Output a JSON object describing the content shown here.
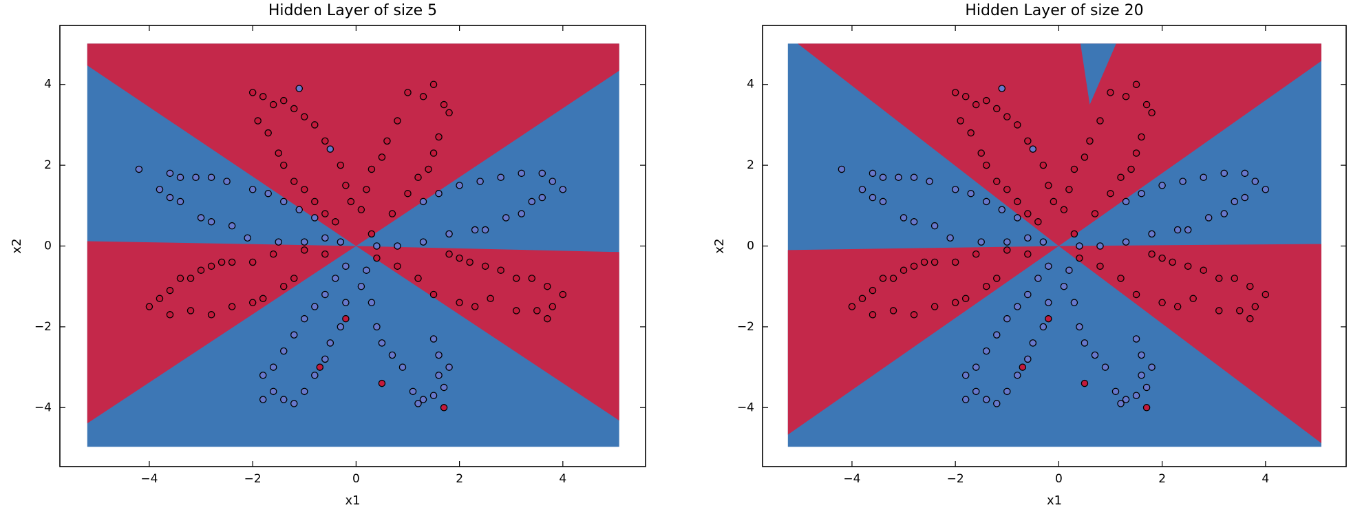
{
  "chart_data": [
    {
      "type": "scatter",
      "title": "Hidden Layer of size 5",
      "xlabel": "x1",
      "ylabel": "x2",
      "xlim": [
        -5.73,
        5.6
      ],
      "ylim": [
        -5.46,
        5.46
      ],
      "xticks": [
        {
          "value": -4,
          "label": "−4"
        },
        {
          "value": -2,
          "label": "−2"
        },
        0,
        2,
        4
      ],
      "yticks": [
        {
          "value": -4,
          "label": "−4"
        },
        {
          "value": -2,
          "label": "−2"
        },
        0,
        2,
        4
      ],
      "regions": [
        {
          "color": "#3d77b5",
          "x": [
            -5.2,
            5.09,
            5.09,
            -5.2
          ],
          "y": [
            5.01,
            5.01,
            -4.97,
            -4.97
          ]
        },
        {
          "color": "#c4284a",
          "x": [
            -5.2,
            -5.2,
            5.09,
            5.09,
            0
          ],
          "y": [
            4.47,
            5.01,
            5.01,
            4.34,
            0
          ]
        },
        {
          "color": "#c4284a",
          "x": [
            -5.2,
            0,
            -5.2
          ],
          "y": [
            0.12,
            0,
            -4.39
          ]
        },
        {
          "color": "#c4284a",
          "x": [
            5.09,
            0,
            5.09
          ],
          "y": [
            -0.15,
            0,
            -4.32
          ]
        }
      ],
      "series": [
        {
          "color": "#c41a3c",
          "x": [
            -2,
            -1.8,
            -1.6,
            -1.4,
            -1.2,
            -1,
            -0.8,
            -0.6,
            -1.9,
            -1.7,
            -1.5,
            -1.4,
            -1.2,
            -1,
            -0.8,
            -0.6,
            -0.4,
            -0.3,
            -0.2,
            -0.1,
            1,
            1.3,
            1.5,
            1.7,
            1.8,
            1.6,
            1.5,
            1.4,
            0.8,
            0.6,
            0.5,
            0.3,
            0.2,
            0.1,
            0.3,
            1.2,
            1,
            0.7,
            -4,
            -3.8,
            -3.6,
            -3.4,
            -3.2,
            -3,
            -2.8,
            -2.6,
            -2.4,
            -3.6,
            -3.2,
            -2.8,
            -2.4,
            -2,
            -1.8,
            -1.4,
            -1.2,
            -1.6,
            -1,
            -0.6,
            -2,
            1.8,
            2,
            2.2,
            2.5,
            2.8,
            3.1,
            3.4,
            3.7,
            4,
            3.8,
            3.5,
            3.1,
            2.6,
            2.3,
            2,
            1.5,
            1.2,
            0.8,
            0.4,
            3.7,
            -0.2,
            -0.7,
            1.7,
            0.5
          ],
          "y": [
            3.8,
            3.7,
            3.5,
            3.6,
            3.4,
            3.2,
            3,
            2.6,
            3.1,
            2.8,
            2.3,
            2,
            1.6,
            1.4,
            1.1,
            0.8,
            0.6,
            2,
            1.5,
            1.1,
            3.8,
            3.7,
            4,
            3.5,
            3.3,
            2.7,
            2.3,
            1.9,
            3.1,
            2.6,
            2.2,
            1.9,
            1.4,
            0.9,
            0.3,
            1.7,
            1.3,
            0.8,
            -1.5,
            -1.3,
            -1.1,
            -0.8,
            -0.8,
            -0.6,
            -0.5,
            -0.4,
            -0.4,
            -1.7,
            -1.6,
            -1.7,
            -1.5,
            -1.4,
            -1.3,
            -1,
            -0.8,
            -0.2,
            -0.1,
            -0.2,
            -0.4,
            -0.2,
            -0.3,
            -0.4,
            -0.5,
            -0.6,
            -0.8,
            -0.8,
            -1,
            -1.2,
            -1.5,
            -1.6,
            -1.6,
            -1.3,
            -1.5,
            -1.4,
            -1.2,
            -0.8,
            -0.5,
            -0.3,
            -1.8,
            -1.8,
            -3,
            -4,
            -3.4
          ]
        },
        {
          "color": "#6878cc",
          "x": [
            -4.2,
            -3.8,
            -3.6,
            -3.4,
            -3.6,
            -3.4,
            -3.1,
            -2.8,
            -2.5,
            -2,
            -1.7,
            -1.4,
            -1.1,
            -0.8,
            -3,
            -2.8,
            -2.4,
            -2.1,
            -1.5,
            -1,
            -0.6,
            -0.3,
            1.3,
            1.6,
            2,
            2.4,
            2.8,
            3.2,
            3.6,
            3.8,
            4,
            3.6,
            3.4,
            3.2,
            2.9,
            2.5,
            2.3,
            1.8,
            1.3,
            0.8,
            0.4,
            -0.2,
            -0.4,
            -0.6,
            -0.8,
            -1,
            -1.2,
            -1.4,
            -1.6,
            -1.8,
            -1.6,
            -1.4,
            -1.2,
            -1,
            -0.8,
            -0.6,
            -0.5,
            -0.3,
            -0.2,
            -1.8,
            0.1,
            0.3,
            0.4,
            0.5,
            0.7,
            0.9,
            1.1,
            1.3,
            1.5,
            1.7,
            1.8,
            1.6,
            1.5,
            1.6,
            1.2,
            0.2,
            -1.1,
            -0.5
          ],
          "y": [
            1.9,
            1.4,
            1.2,
            1.1,
            1.8,
            1.7,
            1.7,
            1.7,
            1.6,
            1.4,
            1.3,
            1.1,
            0.9,
            0.7,
            0.7,
            0.6,
            0.5,
            0.2,
            0.1,
            0.1,
            0.2,
            0.1,
            1.1,
            1.3,
            1.5,
            1.6,
            1.7,
            1.8,
            1.8,
            1.6,
            1.4,
            1.2,
            1.1,
            0.8,
            0.7,
            0.4,
            0.4,
            0.3,
            0.1,
            0,
            0,
            -0.5,
            -0.8,
            -1.2,
            -1.5,
            -1.8,
            -2.2,
            -2.6,
            -3,
            -3.2,
            -3.6,
            -3.8,
            -3.9,
            -3.6,
            -3.2,
            -2.8,
            -2.4,
            -2,
            -1.4,
            -3.8,
            -1,
            -1.4,
            -2,
            -2.4,
            -2.7,
            -3,
            -3.6,
            -3.8,
            -3.7,
            -3.5,
            -3,
            -2.7,
            -2.3,
            -3.2,
            -3.9,
            -0.6,
            3.9,
            2.4
          ]
        }
      ]
    },
    {
      "type": "scatter",
      "title": "Hidden Layer of size 20",
      "xlabel": "x1",
      "ylabel": "x2",
      "xlim": [
        -5.73,
        5.56
      ],
      "ylim": [
        -5.46,
        5.46
      ],
      "xticks": [
        {
          "value": -4,
          "label": "−4"
        },
        {
          "value": -2,
          "label": "−2"
        },
        0,
        2,
        4
      ],
      "yticks": [
        {
          "value": -4,
          "label": "−4"
        },
        {
          "value": -2,
          "label": "−2"
        },
        0,
        2,
        4
      ],
      "regions": [
        {
          "color": "#3d77b5",
          "x": [
            -5.24,
            5.08,
            5.08,
            -5.24
          ],
          "y": [
            5.01,
            5.01,
            -4.97,
            -4.97
          ]
        },
        {
          "color": "#c4284a",
          "x": [
            -5.05,
            5.08,
            5.08,
            0
          ],
          "y": [
            5.01,
            5.01,
            4.58,
            0
          ]
        },
        {
          "color": "#3d77b5",
          "x": [
            0.42,
            1.11,
            0.6
          ],
          "y": [
            5.01,
            5.01,
            3.5
          ]
        },
        {
          "color": "#c4284a",
          "x": [
            -5.24,
            0,
            -5.24
          ],
          "y": [
            -0.1,
            0,
            -4.67
          ]
        },
        {
          "color": "#c4284a",
          "x": [
            5.08,
            0,
            5.08
          ],
          "y": [
            0.05,
            0,
            -4.88
          ]
        }
      ],
      "series": [
        {
          "color": "#c41a3c",
          "x": [
            -2,
            -1.8,
            -1.6,
            -1.4,
            -1.2,
            -1,
            -0.8,
            -0.6,
            -1.9,
            -1.7,
            -1.5,
            -1.4,
            -1.2,
            -1,
            -0.8,
            -0.6,
            -0.4,
            -0.3,
            -0.2,
            -0.1,
            1,
            1.3,
            1.5,
            1.7,
            1.8,
            1.6,
            1.5,
            1.4,
            0.8,
            0.6,
            0.5,
            0.3,
            0.2,
            0.1,
            0.3,
            1.2,
            1,
            0.7,
            -4,
            -3.8,
            -3.6,
            -3.4,
            -3.2,
            -3,
            -2.8,
            -2.6,
            -2.4,
            -3.6,
            -3.2,
            -2.8,
            -2.4,
            -2,
            -1.8,
            -1.4,
            -1.2,
            -1.6,
            -1,
            -0.6,
            -2,
            1.8,
            2,
            2.2,
            2.5,
            2.8,
            3.1,
            3.4,
            3.7,
            4,
            3.8,
            3.5,
            3.1,
            2.6,
            2.3,
            2,
            1.5,
            1.2,
            0.8,
            0.4,
            3.7,
            -0.2,
            -0.7,
            1.7,
            0.5
          ],
          "y": [
            3.8,
            3.7,
            3.5,
            3.6,
            3.4,
            3.2,
            3,
            2.6,
            3.1,
            2.8,
            2.3,
            2,
            1.6,
            1.4,
            1.1,
            0.8,
            0.6,
            2,
            1.5,
            1.1,
            3.8,
            3.7,
            4,
            3.5,
            3.3,
            2.7,
            2.3,
            1.9,
            3.1,
            2.6,
            2.2,
            1.9,
            1.4,
            0.9,
            0.3,
            1.7,
            1.3,
            0.8,
            -1.5,
            -1.3,
            -1.1,
            -0.8,
            -0.8,
            -0.6,
            -0.5,
            -0.4,
            -0.4,
            -1.7,
            -1.6,
            -1.7,
            -1.5,
            -1.4,
            -1.3,
            -1,
            -0.8,
            -0.2,
            -0.1,
            -0.2,
            -0.4,
            -0.2,
            -0.3,
            -0.4,
            -0.5,
            -0.6,
            -0.8,
            -0.8,
            -1,
            -1.2,
            -1.5,
            -1.6,
            -1.6,
            -1.3,
            -1.5,
            -1.4,
            -1.2,
            -0.8,
            -0.5,
            -0.3,
            -1.8,
            -1.8,
            -3,
            -4,
            -3.4
          ]
        },
        {
          "color": "#6878cc",
          "x": [
            -4.2,
            -3.8,
            -3.6,
            -3.4,
            -3.6,
            -3.4,
            -3.1,
            -2.8,
            -2.5,
            -2,
            -1.7,
            -1.4,
            -1.1,
            -0.8,
            -3,
            -2.8,
            -2.4,
            -2.1,
            -1.5,
            -1,
            -0.6,
            -0.3,
            1.3,
            1.6,
            2,
            2.4,
            2.8,
            3.2,
            3.6,
            3.8,
            4,
            3.6,
            3.4,
            3.2,
            2.9,
            2.5,
            2.3,
            1.8,
            1.3,
            0.8,
            0.4,
            -0.2,
            -0.4,
            -0.6,
            -0.8,
            -1,
            -1.2,
            -1.4,
            -1.6,
            -1.8,
            -1.6,
            -1.4,
            -1.2,
            -1,
            -0.8,
            -0.6,
            -0.5,
            -0.3,
            -0.2,
            -1.8,
            0.1,
            0.3,
            0.4,
            0.5,
            0.7,
            0.9,
            1.1,
            1.3,
            1.5,
            1.7,
            1.8,
            1.6,
            1.5,
            1.6,
            1.2,
            0.2,
            -1.1,
            -0.5
          ],
          "y": [
            1.9,
            1.4,
            1.2,
            1.1,
            1.8,
            1.7,
            1.7,
            1.7,
            1.6,
            1.4,
            1.3,
            1.1,
            0.9,
            0.7,
            0.7,
            0.6,
            0.5,
            0.2,
            0.1,
            0.1,
            0.2,
            0.1,
            1.1,
            1.3,
            1.5,
            1.6,
            1.7,
            1.8,
            1.8,
            1.6,
            1.4,
            1.2,
            1.1,
            0.8,
            0.7,
            0.4,
            0.4,
            0.3,
            0.1,
            0,
            0,
            -0.5,
            -0.8,
            -1.2,
            -1.5,
            -1.8,
            -2.2,
            -2.6,
            -3,
            -3.2,
            -3.6,
            -3.8,
            -3.9,
            -3.6,
            -3.2,
            -2.8,
            -2.4,
            -2,
            -1.4,
            -3.8,
            -1,
            -1.4,
            -2,
            -2.4,
            -2.7,
            -3,
            -3.6,
            -3.8,
            -3.7,
            -3.5,
            -3,
            -2.7,
            -2.3,
            -3.2,
            -3.9,
            -0.6,
            3.9,
            2.4
          ]
        }
      ]
    }
  ]
}
